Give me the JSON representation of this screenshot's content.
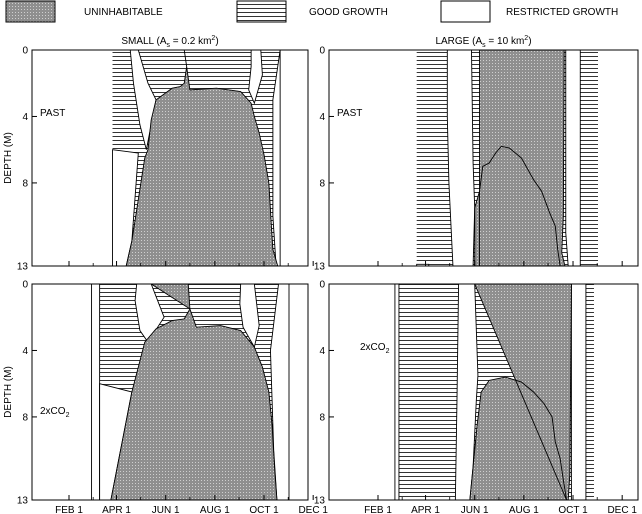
{
  "legend": {
    "uninhabitable": "UNINHABITABLE",
    "good_growth": "GOOD GROWTH",
    "restricted_growth": "RESTRICTED GROWTH"
  },
  "colors": {
    "uninhabitable_fill": "#9a9a9a",
    "good_growth_lines": "#000000",
    "background": "#ffffff"
  },
  "axes": {
    "ylabel": "DEPTH (M)",
    "y_ticks": [
      "0",
      "4",
      "8",
      "13"
    ],
    "x_ticks": [
      "FEB 1",
      "APR 1",
      "JUN 1",
      "AUG 1",
      "OCT 1",
      "DEC 1"
    ]
  },
  "chart_data": [
    {
      "type": "area",
      "panel": "small-past",
      "title_prefix": "SMALL (A",
      "title_sub": "s",
      "title_mid": " = 0.2 km",
      "title_sup": "2",
      "title_suffix": ")",
      "scenario_label": "PAST",
      "scenario_sub": "",
      "xlim": [
        1,
        365
      ],
      "ylim": [
        13,
        0
      ],
      "good_growth_regions": [
        {
          "name": "spring",
          "x": [
            86,
            94,
            103,
            110,
            120,
            126,
            129
          ],
          "top": [
            0,
            0,
            0,
            0,
            0,
            0,
            0
          ],
          "bottom": [
            0,
            2.3,
            3.5,
            5.8,
            6.2,
            6.2,
            6.2
          ]
        },
        {
          "name": "autumn",
          "x": [
            275,
            287,
            294
          ],
          "top": [
            0,
            0,
            0
          ],
          "bottom": [
            2.7,
            1.0,
            0
          ]
        }
      ],
      "uninhabitable": [
        [
          132,
          0
        ],
        [
          175,
          0
        ],
        [
          178,
          1.0
        ],
        [
          182,
          2.4
        ],
        [
          215,
          2.3
        ],
        [
          245,
          2.5
        ],
        [
          258,
          3.2
        ],
        [
          262,
          4.0
        ],
        [
          268,
          5.0
        ],
        [
          274,
          6.3
        ],
        [
          280,
          8.0
        ],
        [
          283,
          10.5
        ],
        [
          285,
          12.0
        ],
        [
          291,
          13.0
        ],
        [
          103,
          13.0
        ],
        [
          110,
          11.5
        ],
        [
          118,
          9.0
        ],
        [
          126,
          6.5
        ],
        [
          130,
          6.0
        ],
        [
          134,
          4.2
        ],
        [
          140,
          3.0
        ],
        [
          160,
          2.3
        ],
        [
          170,
          2.2
        ],
        [
          175,
          2.0
        ],
        [
          178,
          1.0
        ],
        [
          175,
          0
        ]
      ]
    },
    {
      "type": "area",
      "panel": "large-past",
      "title_prefix": "LARGE (A",
      "title_sub": "s",
      "title_mid": " = 10 km",
      "title_sup": "2",
      "title_suffix": ")",
      "scenario_label": "PAST",
      "scenario_sub": "",
      "xlim": [
        1,
        365
      ],
      "ylim": [
        13,
        0
      ],
      "good_growth_regions": [
        {
          "name": "spring",
          "x": [
            80,
            135,
            140,
            145,
            150,
            152,
            152
          ],
          "top": [
            0,
            0,
            3.5,
            5.5,
            6.3,
            6.8,
            13.0
          ]
        },
        {
          "name": "autumn",
          "x": [
            285,
            305
          ],
          "top": [
            0,
            0
          ]
        }
      ],
      "uninhabitable": [
        [
          158,
          0
        ],
        [
          263,
          0
        ],
        [
          262,
          10.0
        ],
        [
          260,
          12.2
        ],
        [
          262,
          12.6
        ],
        [
          264,
          13.0
        ],
        [
          152,
          13.0
        ],
        [
          152,
          9.5
        ],
        [
          158,
          8.5
        ],
        [
          162,
          7.0
        ],
        [
          170,
          6.8
        ],
        [
          178,
          6.2
        ],
        [
          185,
          5.8
        ],
        [
          195,
          5.9
        ],
        [
          210,
          6.5
        ],
        [
          225,
          7.8
        ],
        [
          235,
          8.5
        ],
        [
          245,
          9.8
        ],
        [
          252,
          10.6
        ],
        [
          255,
          12.0
        ],
        [
          258,
          13.0
        ],
        [
          158,
          13.0
        ]
      ]
    },
    {
      "type": "area",
      "panel": "small-2xco2",
      "title_prefix": "",
      "title_sub": "",
      "title_mid": "",
      "title_sup": "",
      "title_suffix": "",
      "scenario_label": "2xCO",
      "scenario_sub": "2",
      "xlim": [
        1,
        365
      ],
      "ylim": [
        13,
        0
      ],
      "uninhabitable": [
        [
          134,
          0
        ],
        [
          180,
          0
        ],
        [
          182,
          1.5
        ],
        [
          190,
          2.6
        ],
        [
          220,
          2.5
        ],
        [
          245,
          2.8
        ],
        [
          262,
          3.8
        ],
        [
          272,
          5.0
        ],
        [
          280,
          6.5
        ],
        [
          284,
          8.5
        ],
        [
          287,
          11.0
        ],
        [
          290,
          13.0
        ],
        [
          84,
          13.0
        ],
        [
          92,
          11.0
        ],
        [
          100,
          9.0
        ],
        [
          110,
          6.5
        ],
        [
          118,
          5.0
        ],
        [
          126,
          3.5
        ],
        [
          140,
          2.7
        ],
        [
          160,
          2.2
        ],
        [
          175,
          2.1
        ],
        [
          182,
          1.5
        ]
      ]
    },
    {
      "type": "area",
      "panel": "large-2xco2",
      "title_prefix": "",
      "title_sub": "",
      "title_mid": "",
      "title_sup": "",
      "title_suffix": "",
      "scenario_label": "2xCO",
      "scenario_sub": "2",
      "xlim": [
        1,
        365
      ],
      "ylim": [
        13,
        0
      ],
      "uninhabitable": [
        [
          152,
          0
        ],
        [
          272,
          0
        ],
        [
          270,
          11.5
        ],
        [
          268,
          13.0
        ],
        [
          146,
          13.0
        ],
        [
          150,
          11.0
        ],
        [
          155,
          8.5
        ],
        [
          160,
          6.5
        ],
        [
          170,
          5.8
        ],
        [
          190,
          5.6
        ],
        [
          210,
          5.9
        ],
        [
          225,
          6.5
        ],
        [
          238,
          7.2
        ],
        [
          248,
          8.0
        ],
        [
          252,
          9.5
        ],
        [
          258,
          10.5
        ],
        [
          262,
          11.8
        ],
        [
          266,
          13.0
        ]
      ]
    }
  ]
}
